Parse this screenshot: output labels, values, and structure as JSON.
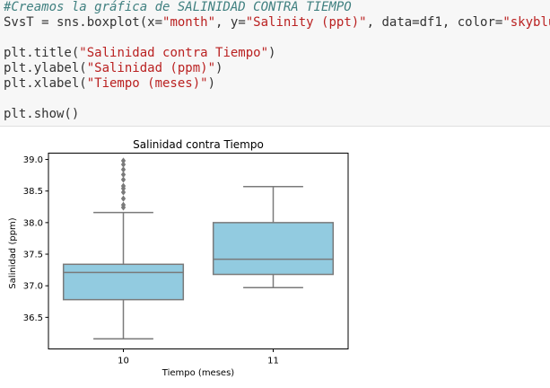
{
  "code": {
    "comment": "#Creamos la gráfica de SALINIDAD CONTRA TIEMPO",
    "line1": {
      "a": "SvsT = sns.boxplot(x=",
      "s1": "\"month\"",
      "b": ", y=",
      "s2": "\"Salinity (ppt)\"",
      "c": ", data=df1, color=",
      "s3": "\"skyblue\"",
      "d": ")"
    },
    "line2": {
      "a": "plt.title(",
      "s": "\"Salinidad contra Tiempo\"",
      "b": ")"
    },
    "line3": {
      "a": "plt.ylabel(",
      "s": "\"Salinidad (ppm)\"",
      "b": ")"
    },
    "line4": {
      "a": "plt.xlabel(",
      "s": "\"Tiempo (meses)\"",
      "b": ")"
    },
    "line5": "plt.show()"
  },
  "chart_data": {
    "type": "box",
    "title": "Salinidad contra Tiempo",
    "xlabel": "Tiempo (meses)",
    "ylabel": "Salinidad (ppm)",
    "categories": [
      "10",
      "11"
    ],
    "ylim": [
      36.0,
      39.1
    ],
    "yticks": [
      36.5,
      37.0,
      37.5,
      38.0,
      38.5,
      39.0
    ],
    "ytick_labels": [
      "36.5",
      "37.0",
      "37.5",
      "38.0",
      "38.5",
      "39.0"
    ],
    "color": "#92cbe0",
    "edge_color": "#7a7a7a",
    "boxes": [
      {
        "category": "10",
        "whisker_low": 36.16,
        "q1": 36.78,
        "median": 37.21,
        "q3": 37.34,
        "whisker_high": 38.16,
        "outliers": [
          38.24,
          38.28,
          38.38,
          38.48,
          38.54,
          38.58,
          38.68,
          38.76,
          38.84,
          38.92,
          38.98
        ]
      },
      {
        "category": "11",
        "whisker_low": 36.97,
        "q1": 37.18,
        "median": 37.42,
        "q3": 38.0,
        "whisker_high": 38.57,
        "outliers": []
      }
    ]
  }
}
